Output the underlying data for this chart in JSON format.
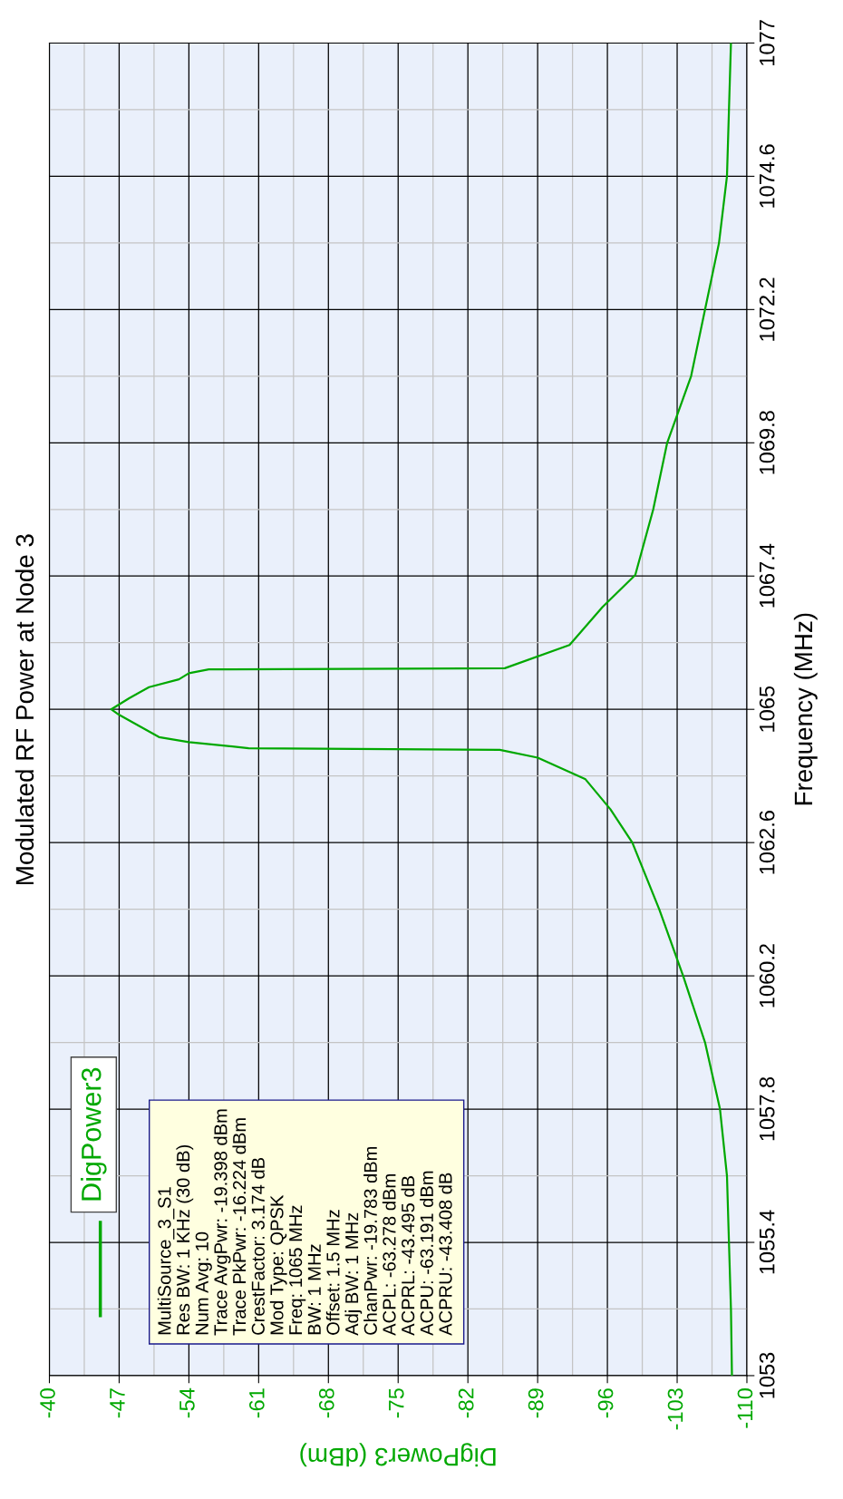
{
  "chart_data": {
    "type": "line",
    "title": "Modulated RF Power at Node 3",
    "xlabel": "DigPower3 (dBm)",
    "ylabel": "Frequency (MHz)",
    "xlim": [
      -40,
      -110
    ],
    "xticks": [
      -40,
      -47,
      -54,
      -61,
      -68,
      -75,
      -82,
      -89,
      -96,
      -103,
      -110
    ],
    "ylim": [
      1053,
      1077
    ],
    "yticks": [
      1053,
      1055.4,
      1057.8,
      1060.2,
      1062.6,
      1065,
      1067.4,
      1069.8,
      1072.2,
      1074.6,
      1077
    ],
    "grid": true,
    "legend": "bottom left",
    "marker": "none",
    "line_style": "solid",
    "annotations": [
      "MultiSource_3_S1\nRes BW: 1 KHz (30 dB)\nNum Avg: 10\nTrace AvgPwr: -19.398 dBm\nTrace PkPwr: -16.224 dBm\nCrestFactor: 3.174 dB\nMod Type: QPSK\nFreq: 1065 MHz\nBW: 1 MHz\nOffset: 1.5 MHz\nAdj BW: 1 MHz\nChanPwr: -19.783 dBm\nACPL: -63.278 dBm\nACPRL: -43.495 dB\nACPU: -63.191 dBm\nACPRU: -43.408 dB"
    ],
    "series": [
      {
        "name": "DigPower3",
        "color": "#00a800",
        "values": [
          1053,
          1054.2,
          1055.4,
          1056.6,
          1057.8,
          1059,
          1060.2,
          1061.4,
          1062.6,
          1063.2,
          1063.74,
          1064.13,
          1064.27,
          1064.3,
          1064.41,
          1064.5,
          1064.7,
          1064.9,
          1065.0,
          1065.2,
          1065.4,
          1065.54,
          1065.65,
          1065.72,
          1065.74,
          1066.16,
          1066.84,
          1067.42,
          1068.6,
          1069.8,
          1071,
          1072.2,
          1073.4,
          1074.6,
          1075.8,
          1077
        ],
        "x": [
          -108.5,
          -108.4,
          -108.2,
          -108,
          -107.3,
          -105.8,
          -103.6,
          -101.2,
          -98.5,
          -96.3,
          -93.8,
          -89,
          -85.2,
          -60,
          -54,
          -51,
          -49,
          -47,
          -46.2,
          -48,
          -50,
          -53,
          -54,
          -56,
          -85.7,
          -92.2,
          -95.5,
          -98.8,
          -100.6,
          -102,
          -104.4,
          -105.8,
          -107.2,
          -108,
          -108.2,
          -108.4
        ]
      }
    ]
  }
}
